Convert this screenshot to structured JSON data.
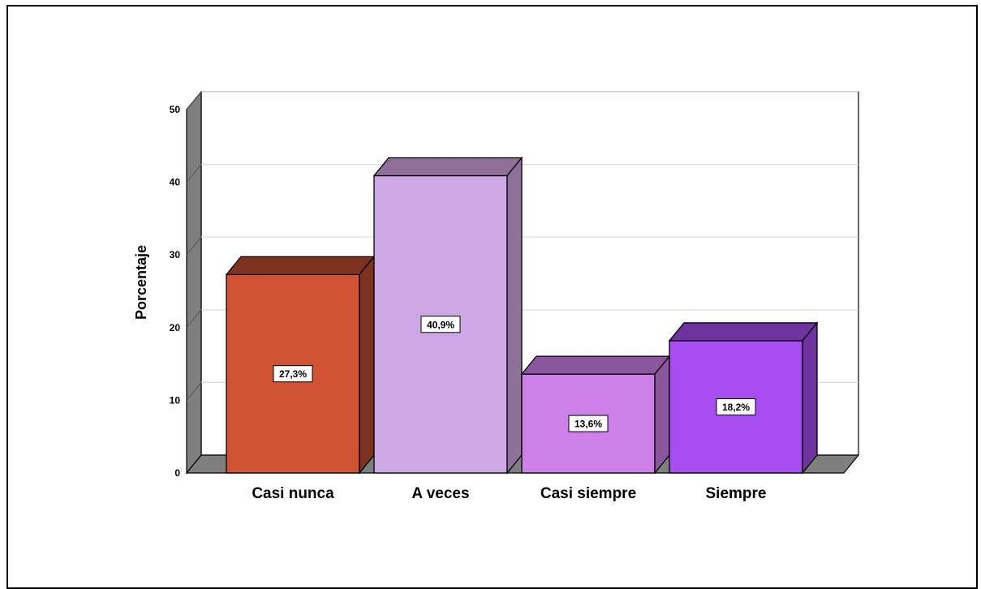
{
  "chart_data": {
    "type": "bar",
    "ylabel": "Porcentaje",
    "xlabel": "",
    "ylim": [
      0,
      50
    ],
    "yticks": [
      "0",
      "10",
      "20",
      "30",
      "40",
      "50"
    ],
    "grid": true,
    "categories": [
      "Casi nunca",
      "A veces",
      "Casi siempre",
      "Siempre"
    ],
    "values": [
      27.3,
      40.9,
      13.6,
      18.2
    ],
    "data_labels": [
      "27,3%",
      "40,9%",
      "13,6%",
      "18,2%"
    ],
    "colors": {
      "front": [
        "#d05335",
        "#cea8e4",
        "#cc80e8",
        "#a84ef0"
      ],
      "top": [
        "#7e3220",
        "#8e7099",
        "#8a579c",
        "#6f33a0"
      ],
      "side": [
        "#7e3220",
        "#8e7099",
        "#8a579c",
        "#6f33a0"
      ],
      "wall_side": "#7f7f7f",
      "floor": "#7f7f7f",
      "grid": "#d9d9d9"
    }
  }
}
